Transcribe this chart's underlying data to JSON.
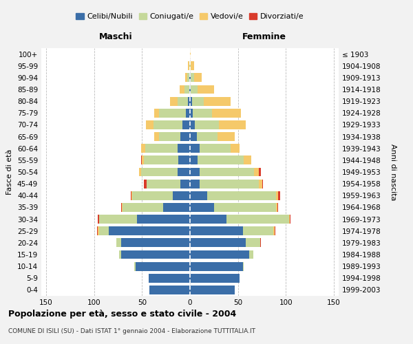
{
  "age_groups": [
    "0-4",
    "5-9",
    "10-14",
    "15-19",
    "20-24",
    "25-29",
    "30-34",
    "35-39",
    "40-44",
    "45-49",
    "50-54",
    "55-59",
    "60-64",
    "65-69",
    "70-74",
    "75-79",
    "80-84",
    "85-89",
    "90-94",
    "95-99",
    "100+"
  ],
  "birth_years": [
    "1999-2003",
    "1994-1998",
    "1989-1993",
    "1984-1988",
    "1979-1983",
    "1974-1978",
    "1969-1973",
    "1964-1968",
    "1959-1963",
    "1954-1958",
    "1949-1953",
    "1944-1948",
    "1939-1943",
    "1934-1938",
    "1929-1933",
    "1924-1928",
    "1919-1923",
    "1914-1918",
    "1909-1913",
    "1904-1908",
    "≤ 1903"
  ],
  "colors": {
    "celibe": "#3B6EA8",
    "coniugato": "#C5D89A",
    "vedovo": "#F5C96A",
    "divorziato": "#D93B2B"
  },
  "maschi": {
    "celibe": [
      42,
      43,
      57,
      72,
      72,
      85,
      55,
      28,
      18,
      10,
      13,
      12,
      13,
      10,
      8,
      4,
      2,
      1,
      1,
      0,
      0
    ],
    "coniugato": [
      0,
      0,
      1,
      2,
      5,
      10,
      40,
      42,
      42,
      35,
      38,
      36,
      34,
      22,
      30,
      28,
      11,
      5,
      2,
      1,
      0
    ],
    "vedovo": [
      0,
      0,
      0,
      0,
      0,
      1,
      0,
      1,
      1,
      0,
      2,
      2,
      4,
      5,
      8,
      5,
      8,
      5,
      2,
      1,
      0
    ],
    "divorziato": [
      0,
      0,
      0,
      0,
      0,
      1,
      1,
      1,
      1,
      3,
      0,
      1,
      0,
      0,
      0,
      0,
      0,
      0,
      0,
      0,
      0
    ]
  },
  "femmine": {
    "celibe": [
      47,
      52,
      55,
      62,
      58,
      55,
      38,
      25,
      18,
      10,
      10,
      8,
      10,
      7,
      5,
      3,
      2,
      1,
      1,
      0,
      0
    ],
    "coniugato": [
      0,
      0,
      1,
      4,
      15,
      32,
      65,
      65,
      72,
      62,
      57,
      48,
      32,
      22,
      25,
      20,
      12,
      7,
      3,
      1,
      0
    ],
    "vedovo": [
      0,
      0,
      0,
      0,
      0,
      1,
      1,
      1,
      2,
      3,
      5,
      8,
      10,
      18,
      28,
      30,
      28,
      17,
      8,
      3,
      1
    ],
    "divorziato": [
      0,
      0,
      0,
      0,
      1,
      1,
      1,
      1,
      2,
      1,
      2,
      0,
      0,
      0,
      0,
      0,
      0,
      0,
      0,
      0,
      0
    ]
  },
  "xlim": 155,
  "title": "Popolazione per età, sesso e stato civile - 2004",
  "subtitle": "COMUNE DI ISILI (SU) - Dati ISTAT 1° gennaio 2004 - Elaborazione TUTTITALIA.IT",
  "ylabel_left": "Fasce di età",
  "ylabel_right": "Anni di nascita",
  "xlabel_maschi": "Maschi",
  "xlabel_femmine": "Femmine",
  "legend_labels": [
    "Celibi/Nubili",
    "Coniugati/e",
    "Vedovi/e",
    "Divorziati/e"
  ],
  "background_color": "#f2f2f2",
  "plot_bg_color": "#ffffff",
  "xticks": [
    -150,
    -100,
    -50,
    0,
    50,
    100,
    150
  ]
}
